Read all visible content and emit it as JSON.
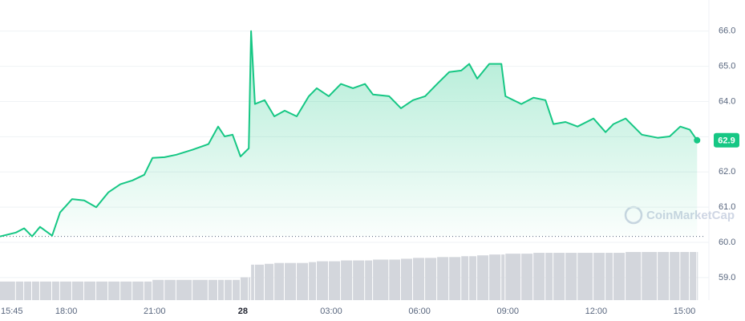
{
  "chart_data": {
    "type": "line",
    "watermark": "CoinMarketCap",
    "x": [
      0,
      0.54,
      0.82,
      1.09,
      1.36,
      1.77,
      2.04,
      2.45,
      2.86,
      3.27,
      3.68,
      4.09,
      4.5,
      4.9,
      5.18,
      5.59,
      5.99,
      6.54,
      7.08,
      7.41,
      7.63,
      7.9,
      8.17,
      8.45,
      8.53,
      8.66,
      8.99,
      9.32,
      9.67,
      10.08,
      10.49,
      10.76,
      11.17,
      11.58,
      11.99,
      12.4,
      12.67,
      13.22,
      13.62,
      14.03,
      14.44,
      14.85,
      15.26,
      15.67,
      15.94,
      16.21,
      16.62,
      17.03,
      17.17,
      17.71,
      18.12,
      18.53,
      18.8,
      19.21,
      19.62,
      20.16,
      20.57,
      20.84,
      21.25,
      21.8,
      22.34,
      22.75,
      23.11,
      23.43,
      23.68
    ],
    "series": [
      {
        "name": "Price",
        "color": "#16c784",
        "values": [
          60.17,
          60.28,
          60.4,
          60.17,
          60.44,
          60.19,
          60.85,
          61.23,
          61.19,
          61.0,
          61.42,
          61.65,
          61.76,
          61.92,
          62.4,
          62.42,
          62.49,
          62.63,
          62.79,
          63.29,
          63.01,
          63.06,
          62.44,
          62.67,
          66.0,
          63.93,
          64.04,
          63.58,
          63.74,
          63.58,
          64.15,
          64.38,
          64.15,
          64.5,
          64.38,
          64.5,
          64.2,
          64.15,
          63.81,
          64.04,
          64.15,
          64.5,
          64.84,
          64.88,
          65.07,
          64.65,
          65.07,
          65.07,
          64.15,
          63.93,
          64.11,
          64.04,
          63.36,
          63.42,
          63.29,
          63.52,
          63.13,
          63.36,
          63.52,
          63.06,
          62.97,
          63.01,
          63.29,
          63.2,
          62.9
        ]
      },
      {
        "name": "Volume",
        "color": "#d3d6dc",
        "values": [
          22,
          22,
          22,
          22,
          22,
          22,
          22,
          22,
          22,
          22,
          22,
          22,
          22,
          22,
          24,
          24,
          24,
          24,
          24,
          24,
          24,
          24,
          27,
          27,
          42,
          42,
          43,
          44,
          44,
          44,
          45,
          46,
          46,
          47,
          47,
          47,
          48,
          48,
          49,
          50,
          50,
          51,
          51,
          52,
          52,
          53,
          54,
          54,
          55,
          55,
          56,
          56,
          56,
          56,
          56,
          56,
          56,
          56,
          57,
          57,
          57,
          57,
          57,
          57,
          57
        ]
      }
    ],
    "xlim": [
      0,
      23.7
    ],
    "xticks": [
      {
        "value": 0,
        "label": "15:45"
      },
      {
        "value": 2.25,
        "label": "18:00"
      },
      {
        "value": 5.25,
        "label": "21:00"
      },
      {
        "value": 8.25,
        "label": "28"
      },
      {
        "value": 11.25,
        "label": "03:00"
      },
      {
        "value": 14.25,
        "label": "06:00"
      },
      {
        "value": 17.25,
        "label": "09:00"
      },
      {
        "value": 20.25,
        "label": "12:00"
      },
      {
        "value": 23.25,
        "label": "15:00"
      }
    ],
    "ylim": [
      58.36,
      66.2
    ],
    "yticks": [
      {
        "value": 59,
        "label": "59.0"
      },
      {
        "value": 60,
        "label": "60.0"
      },
      {
        "value": 61,
        "label": "61.0"
      },
      {
        "value": 62,
        "label": "62.0"
      },
      {
        "value": 63,
        "label": "63.0"
      },
      {
        "value": 64,
        "label": "64.0"
      },
      {
        "value": 65,
        "label": "65.0"
      },
      {
        "value": 66,
        "label": "66.0"
      }
    ],
    "grid": true
  }
}
